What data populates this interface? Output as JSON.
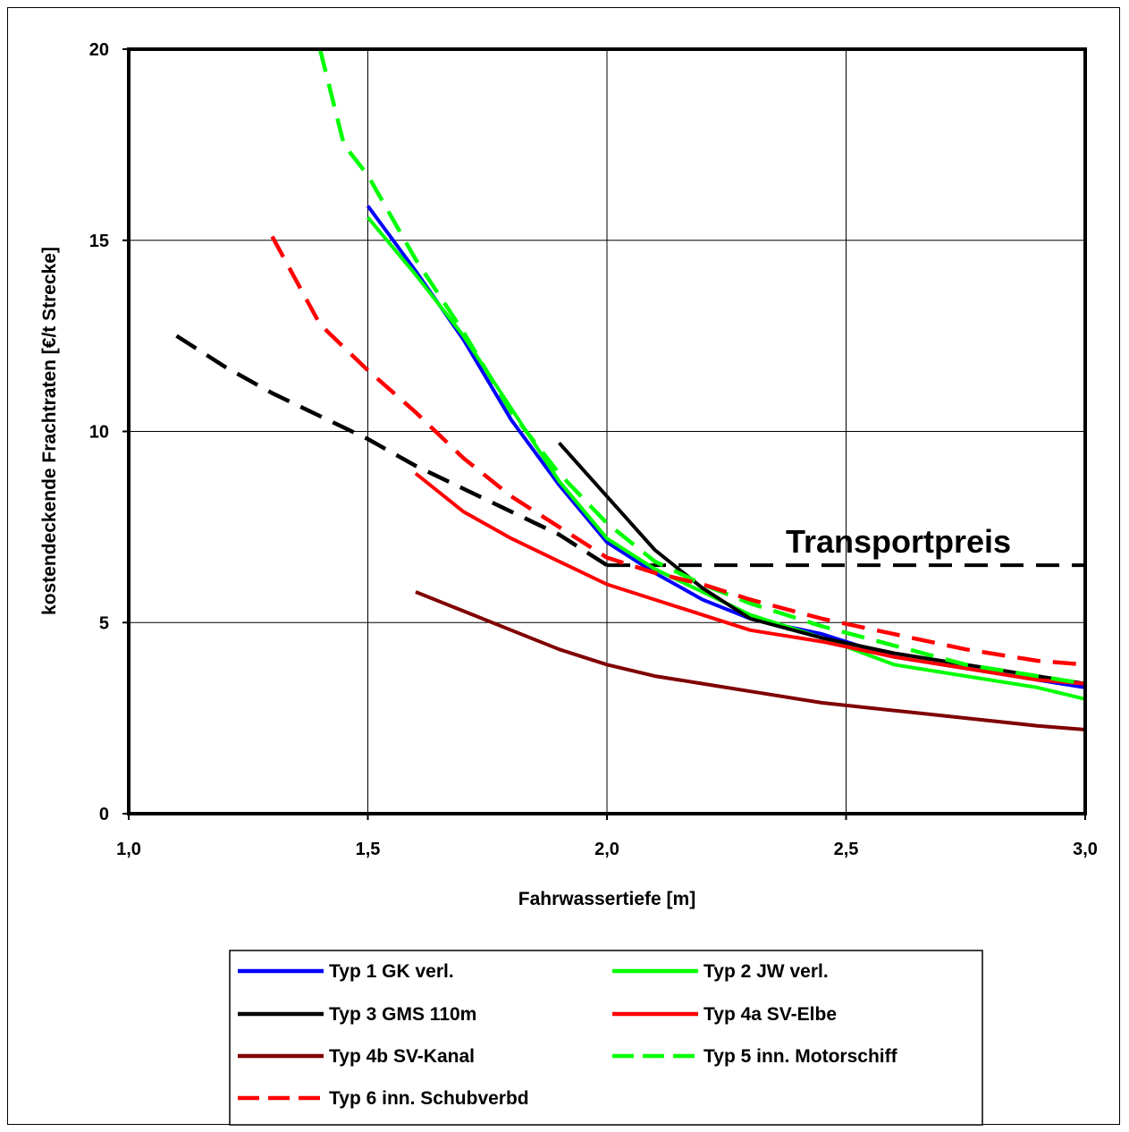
{
  "chart_data": {
    "type": "line",
    "xlabel": "Fahrwassertiefe [m]",
    "ylabel": "kostendeckende Frachtraten [€/t Strecke]",
    "xlim": [
      1.0,
      3.0
    ],
    "ylim": [
      0,
      20
    ],
    "x_ticks": [
      "1,0",
      "1,5",
      "2,0",
      "2,5",
      "3,0"
    ],
    "y_ticks": [
      "0",
      "5",
      "10",
      "15",
      "20"
    ],
    "grid": true,
    "legend_position": "bottom",
    "annotation": {
      "text": "Transportpreis",
      "line_points": [
        [
          2.0,
          6.5
        ],
        [
          3.0,
          6.5
        ]
      ],
      "line_style": "dashed",
      "color": "#000000"
    },
    "series": [
      {
        "name": "Typ 1 GK verl.",
        "color": "#0000ff",
        "style": "solid",
        "points": [
          [
            1.5,
            15.9
          ],
          [
            1.6,
            14.2
          ],
          [
            1.7,
            12.4
          ],
          [
            1.8,
            10.3
          ],
          [
            1.9,
            8.6
          ],
          [
            2.0,
            7.1
          ],
          [
            2.1,
            6.3
          ],
          [
            2.2,
            5.6
          ],
          [
            2.3,
            5.1
          ],
          [
            2.45,
            4.7
          ],
          [
            2.6,
            4.1
          ],
          [
            2.75,
            3.8
          ],
          [
            2.9,
            3.5
          ],
          [
            3.0,
            3.3
          ]
        ]
      },
      {
        "name": "Typ 2 JW verl.",
        "color": "#00ff00",
        "style": "solid",
        "points": [
          [
            1.5,
            15.6
          ],
          [
            1.6,
            14.1
          ],
          [
            1.7,
            12.5
          ],
          [
            1.8,
            10.6
          ],
          [
            1.9,
            8.7
          ],
          [
            2.0,
            7.2
          ],
          [
            2.1,
            6.4
          ],
          [
            2.2,
            5.8
          ],
          [
            2.3,
            5.2
          ],
          [
            2.45,
            4.6
          ],
          [
            2.6,
            3.9
          ],
          [
            2.75,
            3.6
          ],
          [
            2.9,
            3.3
          ],
          [
            3.0,
            3.0
          ]
        ]
      },
      {
        "name": "Typ 3 GMS 110m",
        "color": "#000000",
        "style": "solid",
        "points": [
          [
            1.9,
            9.7
          ],
          [
            2.0,
            8.3
          ],
          [
            2.1,
            6.9
          ],
          [
            2.2,
            5.9
          ],
          [
            2.3,
            5.1
          ],
          [
            2.45,
            4.6
          ],
          [
            2.6,
            4.2
          ],
          [
            2.75,
            3.9
          ],
          [
            2.9,
            3.6
          ],
          [
            3.0,
            3.4
          ]
        ]
      },
      {
        "name": "Typ 4a SV-Elbe",
        "color": "#ff0000",
        "style": "solid",
        "points": [
          [
            1.6,
            8.9
          ],
          [
            1.7,
            7.9
          ],
          [
            1.8,
            7.2
          ],
          [
            1.9,
            6.6
          ],
          [
            2.0,
            6.0
          ],
          [
            2.1,
            5.6
          ],
          [
            2.2,
            5.2
          ],
          [
            2.3,
            4.8
          ],
          [
            2.45,
            4.5
          ],
          [
            2.6,
            4.1
          ],
          [
            2.75,
            3.8
          ],
          [
            2.9,
            3.5
          ],
          [
            3.0,
            3.4
          ]
        ]
      },
      {
        "name": "Typ 4b SV-Kanal",
        "color": "#800000",
        "style": "solid",
        "points": [
          [
            1.6,
            5.8
          ],
          [
            1.7,
            5.3
          ],
          [
            1.8,
            4.8
          ],
          [
            1.9,
            4.3
          ],
          [
            2.0,
            3.9
          ],
          [
            2.1,
            3.6
          ],
          [
            2.2,
            3.4
          ],
          [
            2.3,
            3.2
          ],
          [
            2.45,
            2.9
          ],
          [
            2.6,
            2.7
          ],
          [
            2.75,
            2.5
          ],
          [
            2.9,
            2.3
          ],
          [
            3.0,
            2.2
          ]
        ]
      },
      {
        "name": "Typ 5 inn. Motorschiff",
        "color": "#00ff00",
        "style": "dashed",
        "points": [
          [
            1.4,
            20.0
          ],
          [
            1.45,
            17.5
          ],
          [
            1.5,
            16.7
          ],
          [
            1.6,
            14.5
          ],
          [
            1.7,
            12.6
          ],
          [
            1.8,
            10.5
          ],
          [
            1.9,
            8.9
          ],
          [
            2.0,
            7.6
          ],
          [
            2.1,
            6.6
          ],
          [
            2.2,
            6.0
          ],
          [
            2.3,
            5.5
          ],
          [
            2.45,
            4.9
          ],
          [
            2.6,
            4.4
          ],
          [
            2.75,
            3.9
          ],
          [
            2.9,
            3.6
          ],
          [
            3.0,
            3.4
          ]
        ]
      },
      {
        "name": "Typ 6 inn. Schubverbd",
        "color": "#ff0000",
        "style": "dashed",
        "points": [
          [
            1.3,
            15.1
          ],
          [
            1.4,
            12.8
          ],
          [
            1.5,
            11.6
          ],
          [
            1.6,
            10.5
          ],
          [
            1.7,
            9.3
          ],
          [
            1.8,
            8.3
          ],
          [
            1.9,
            7.5
          ],
          [
            2.0,
            6.7
          ],
          [
            2.1,
            6.3
          ],
          [
            2.2,
            6.0
          ],
          [
            2.3,
            5.6
          ],
          [
            2.45,
            5.1
          ],
          [
            2.6,
            4.7
          ],
          [
            2.75,
            4.3
          ],
          [
            2.9,
            4.0
          ],
          [
            3.0,
            3.9
          ]
        ]
      },
      {
        "name": "",
        "color": "#000000",
        "style": "dashed",
        "points": [
          [
            1.1,
            12.5
          ],
          [
            1.2,
            11.7
          ],
          [
            1.3,
            11.0
          ],
          [
            1.4,
            10.4
          ],
          [
            1.5,
            9.8
          ],
          [
            1.6,
            9.1
          ],
          [
            1.7,
            8.5
          ],
          [
            1.8,
            7.9
          ],
          [
            1.9,
            7.3
          ],
          [
            2.0,
            6.5
          ]
        ]
      }
    ],
    "legend_order": [
      0,
      1,
      2,
      3,
      4,
      5,
      6
    ]
  }
}
